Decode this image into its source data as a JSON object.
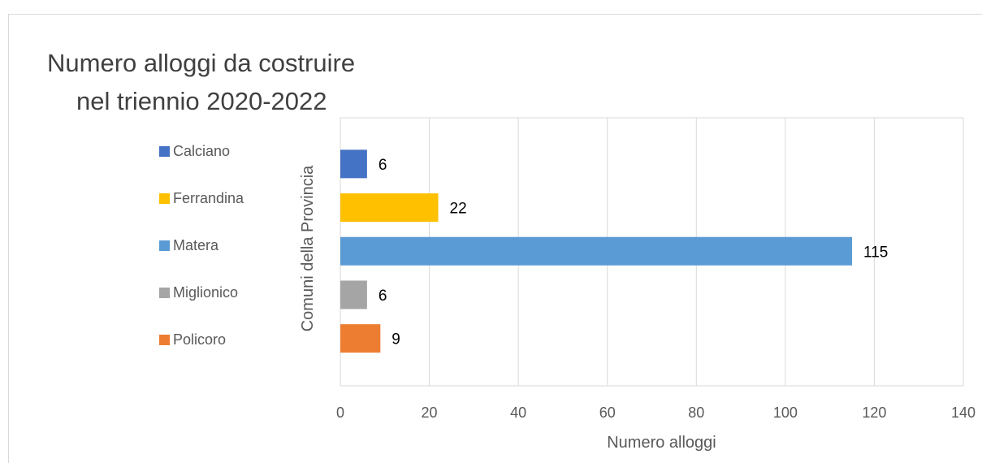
{
  "chart_data": {
    "type": "bar",
    "orientation": "horizontal",
    "title": "Numero alloggi da costruire nel triennio 2020-2022",
    "title_lines": [
      "Numero alloggi da costruire",
      "nel triennio 2020-2022"
    ],
    "xlabel": "Numero alloggi",
    "ylabel": "Comuni della Provincia",
    "xlim": [
      0,
      140
    ],
    "x_ticks": [
      0,
      20,
      40,
      60,
      80,
      100,
      120,
      140
    ],
    "grid": true,
    "legend_position": "left",
    "categories": [
      "Calciano",
      "Ferrandina",
      "Matera",
      "Miglionico",
      "Policoro"
    ],
    "values": [
      6,
      22,
      115,
      6,
      9
    ],
    "colors": [
      "#4472c4",
      "#ffc000",
      "#5b9bd5",
      "#a5a5a5",
      "#ed7d31"
    ]
  }
}
